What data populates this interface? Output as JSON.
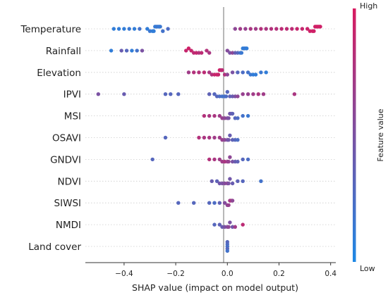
{
  "chart_data": {
    "type": "scatter",
    "subtype": "shap-beeswarm",
    "xlabel": "SHAP value (impact on model output)",
    "xlim": [
      -0.55,
      0.42
    ],
    "xticks": [
      -0.4,
      -0.2,
      0.0,
      0.2,
      0.4
    ],
    "xtick_labels": [
      "−0.4",
      "−0.2",
      "0.0",
      "0.2",
      "0.4"
    ],
    "colorbar": {
      "label": "Feature value",
      "high_label": "High",
      "low_label": "Low",
      "low_color": "#1e88e5",
      "high_color": "#d81b60"
    },
    "features": [
      {
        "name": "Temperature",
        "points": [
          [
            -0.44,
            0.1
          ],
          [
            -0.42,
            0.1
          ],
          [
            -0.4,
            0.1
          ],
          [
            -0.38,
            0.15
          ],
          [
            -0.36,
            0.1
          ],
          [
            -0.34,
            0.2
          ],
          [
            -0.31,
            0.1
          ],
          [
            -0.3,
            0.15
          ],
          [
            -0.29,
            0.1
          ],
          [
            -0.285,
            0.1
          ],
          [
            -0.28,
            0.15
          ],
          [
            -0.275,
            0.1
          ],
          [
            -0.27,
            0.2
          ],
          [
            -0.265,
            0.1
          ],
          [
            -0.26,
            0.15
          ],
          [
            -0.25,
            0.2
          ],
          [
            -0.23,
            0.25
          ],
          [
            0.03,
            0.6
          ],
          [
            0.05,
            0.7
          ],
          [
            0.07,
            0.65
          ],
          [
            0.09,
            0.75
          ],
          [
            0.11,
            0.7
          ],
          [
            0.13,
            0.8
          ],
          [
            0.15,
            0.75
          ],
          [
            0.17,
            0.8
          ],
          [
            0.19,
            0.8
          ],
          [
            0.21,
            0.85
          ],
          [
            0.23,
            0.85
          ],
          [
            0.25,
            0.85
          ],
          [
            0.27,
            0.9
          ],
          [
            0.29,
            0.9
          ],
          [
            0.31,
            0.92
          ],
          [
            0.32,
            0.95
          ],
          [
            0.33,
            0.95
          ],
          [
            0.335,
            0.95
          ],
          [
            0.34,
            0.95
          ],
          [
            0.345,
            0.95
          ],
          [
            0.35,
            0.98
          ],
          [
            0.355,
            0.95
          ],
          [
            0.36,
            0.95
          ]
        ]
      },
      {
        "name": "Rainfall",
        "points": [
          [
            -0.45,
            0.1
          ],
          [
            -0.41,
            0.4
          ],
          [
            -0.39,
            0.3
          ],
          [
            -0.37,
            0.1
          ],
          [
            -0.35,
            0.2
          ],
          [
            -0.33,
            0.5
          ],
          [
            -0.14,
            0.9
          ],
          [
            -0.16,
            0.9
          ],
          [
            -0.15,
            0.95
          ],
          [
            -0.13,
            0.85
          ],
          [
            -0.12,
            0.9
          ],
          [
            -0.11,
            0.8
          ],
          [
            -0.1,
            0.85
          ],
          [
            -0.08,
            0.8
          ],
          [
            -0.07,
            0.75
          ],
          [
            0.0,
            0.55
          ],
          [
            0.01,
            0.5
          ],
          [
            0.02,
            0.6
          ],
          [
            0.03,
            0.4
          ],
          [
            0.04,
            0.3
          ],
          [
            0.05,
            0.2
          ],
          [
            0.055,
            0.15
          ],
          [
            0.06,
            0.1
          ],
          [
            0.065,
            0.1
          ],
          [
            0.07,
            0.15
          ],
          [
            0.075,
            0.1
          ]
        ]
      },
      {
        "name": "Elevation",
        "points": [
          [
            -0.15,
            0.7
          ],
          [
            -0.13,
            0.8
          ],
          [
            -0.11,
            0.8
          ],
          [
            -0.09,
            0.85
          ],
          [
            -0.07,
            0.75
          ],
          [
            -0.06,
            0.8
          ],
          [
            -0.05,
            0.9
          ],
          [
            -0.04,
            0.95
          ],
          [
            -0.035,
            0.9
          ],
          [
            -0.03,
            0.95
          ],
          [
            -0.025,
            0.9
          ],
          [
            -0.02,
            0.85
          ],
          [
            -0.01,
            0.8
          ],
          [
            0.0,
            0.6
          ],
          [
            0.02,
            0.5
          ],
          [
            0.04,
            0.3
          ],
          [
            0.06,
            0.25
          ],
          [
            0.08,
            0.2
          ],
          [
            0.09,
            0.15
          ],
          [
            0.1,
            0.1
          ],
          [
            0.11,
            0.1
          ],
          [
            0.13,
            0.15
          ],
          [
            0.15,
            0.1
          ]
        ]
      },
      {
        "name": "IPVI",
        "points": [
          [
            -0.5,
            0.5
          ],
          [
            -0.4,
            0.4
          ],
          [
            -0.24,
            0.3
          ],
          [
            -0.22,
            0.3
          ],
          [
            -0.19,
            0.3
          ],
          [
            -0.07,
            0.35
          ],
          [
            -0.05,
            0.3
          ],
          [
            -0.04,
            0.3
          ],
          [
            -0.03,
            0.25
          ],
          [
            -0.02,
            0.2
          ],
          [
            -0.01,
            0.2
          ],
          [
            -0.005,
            0.25
          ],
          [
            0.0,
            0.3
          ],
          [
            0.01,
            0.35
          ],
          [
            0.02,
            0.4
          ],
          [
            0.03,
            0.5
          ],
          [
            0.04,
            0.6
          ],
          [
            0.06,
            0.65
          ],
          [
            0.08,
            0.65
          ],
          [
            0.1,
            0.7
          ],
          [
            0.12,
            0.75
          ],
          [
            0.14,
            0.7
          ],
          [
            0.26,
            0.75
          ]
        ]
      },
      {
        "name": "MSI",
        "points": [
          [
            -0.09,
            0.8
          ],
          [
            -0.07,
            0.75
          ],
          [
            -0.05,
            0.75
          ],
          [
            -0.03,
            0.7
          ],
          [
            -0.02,
            0.65
          ],
          [
            -0.01,
            0.6
          ],
          [
            0.0,
            0.55
          ],
          [
            0.005,
            0.5
          ],
          [
            0.01,
            0.45
          ],
          [
            0.015,
            0.4
          ],
          [
            0.02,
            0.35
          ],
          [
            0.03,
            0.3
          ],
          [
            0.04,
            0.25
          ],
          [
            0.06,
            0.2
          ],
          [
            0.08,
            0.15
          ]
        ]
      },
      {
        "name": "OSAVI",
        "points": [
          [
            -0.11,
            0.8
          ],
          [
            -0.09,
            0.75
          ],
          [
            -0.07,
            0.75
          ],
          [
            -0.05,
            0.7
          ],
          [
            -0.03,
            0.7
          ],
          [
            -0.02,
            0.65
          ],
          [
            -0.01,
            0.6
          ],
          [
            0.0,
            0.5
          ],
          [
            0.005,
            0.45
          ],
          [
            0.01,
            0.4
          ],
          [
            0.02,
            0.35
          ],
          [
            0.03,
            0.3
          ],
          [
            0.04,
            0.25
          ],
          [
            -0.24,
            0.3
          ]
        ]
      },
      {
        "name": "GNDVI",
        "points": [
          [
            -0.07,
            0.8
          ],
          [
            -0.05,
            0.75
          ],
          [
            -0.03,
            0.7
          ],
          [
            -0.02,
            0.7
          ],
          [
            -0.01,
            0.75
          ],
          [
            0.0,
            0.7
          ],
          [
            0.005,
            0.65
          ],
          [
            0.01,
            0.6
          ],
          [
            0.02,
            0.5
          ],
          [
            0.03,
            0.4
          ],
          [
            0.04,
            0.35
          ],
          [
            0.06,
            0.3
          ],
          [
            0.08,
            0.25
          ],
          [
            -0.29,
            0.3
          ]
        ]
      },
      {
        "name": "NDVI",
        "points": [
          [
            -0.06,
            0.4
          ],
          [
            -0.04,
            0.35
          ],
          [
            -0.03,
            0.45
          ],
          [
            -0.02,
            0.5
          ],
          [
            -0.01,
            0.55
          ],
          [
            0.0,
            0.6
          ],
          [
            0.005,
            0.5
          ],
          [
            0.01,
            0.45
          ],
          [
            0.02,
            0.4
          ],
          [
            0.04,
            0.35
          ],
          [
            0.06,
            0.3
          ],
          [
            0.13,
            0.2
          ]
        ]
      },
      {
        "name": "SIWSI",
        "points": [
          [
            -0.07,
            0.3
          ],
          [
            -0.05,
            0.25
          ],
          [
            -0.03,
            0.35
          ],
          [
            -0.01,
            0.55
          ],
          [
            0.0,
            0.6
          ],
          [
            0.005,
            0.65
          ],
          [
            0.01,
            0.7
          ],
          [
            0.015,
            0.75
          ],
          [
            0.02,
            0.6
          ],
          [
            -0.19,
            0.3
          ],
          [
            -0.13,
            0.3
          ]
        ]
      },
      {
        "name": "NMDI",
        "points": [
          [
            -0.05,
            0.3
          ],
          [
            -0.03,
            0.35
          ],
          [
            -0.02,
            0.4
          ],
          [
            -0.01,
            0.5
          ],
          [
            0.0,
            0.55
          ],
          [
            0.005,
            0.6
          ],
          [
            0.01,
            0.5
          ],
          [
            0.02,
            0.45
          ],
          [
            0.03,
            0.7
          ],
          [
            0.06,
            0.85
          ]
        ]
      },
      {
        "name": "Land cover",
        "points": [
          [
            0.0,
            0.2
          ],
          [
            0.0,
            0.3
          ],
          [
            0.0,
            0.25
          ],
          [
            0.0,
            0.2
          ],
          [
            0.0,
            0.3
          ]
        ]
      }
    ]
  }
}
